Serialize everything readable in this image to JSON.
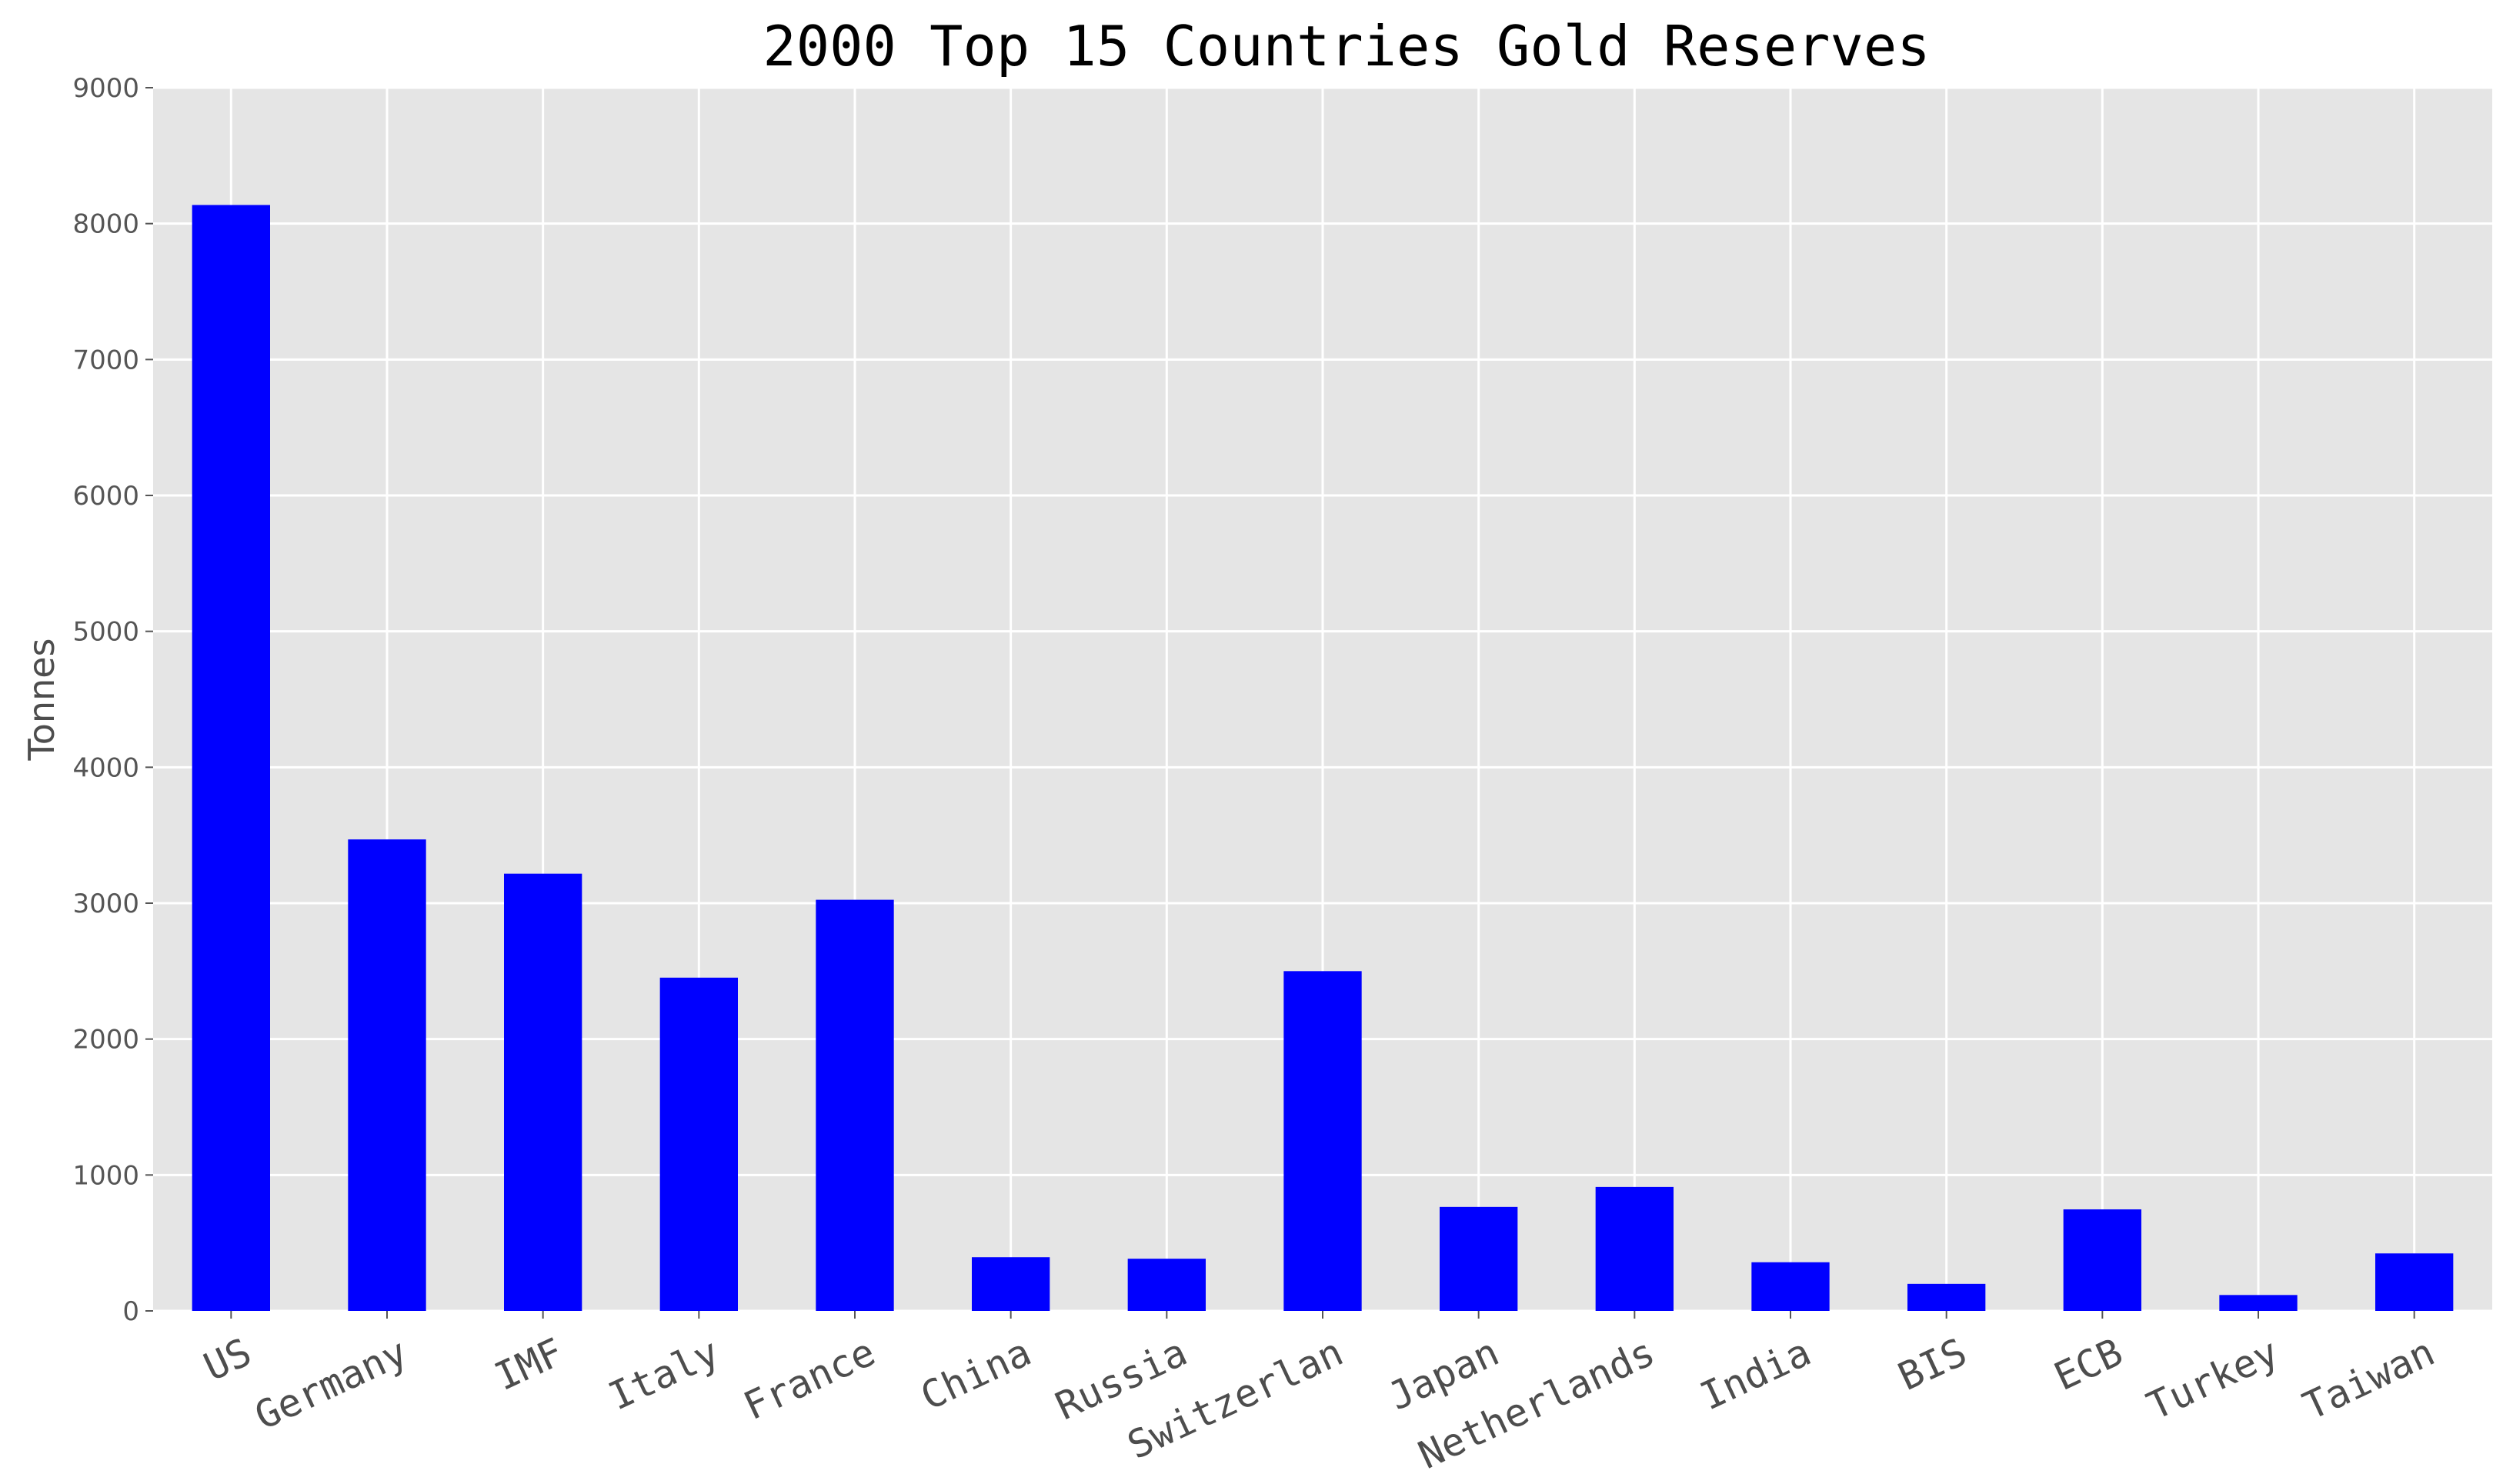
{
  "chart_data": {
    "type": "bar",
    "title": "2000  Top 15 Countries Gold Reserves",
    "xlabel": "",
    "ylabel": "Tonnes",
    "categories": [
      "US",
      "Germany",
      "IMF",
      "Italy",
      "France",
      "China",
      "Russia",
      "Switzerlan",
      "Japan",
      "Netherlands",
      "India",
      "BIS",
      "ECB",
      "Turkey",
      "Taiwan"
    ],
    "values": [
      8137,
      3469,
      3217,
      2452,
      3025,
      395,
      384,
      2500,
      765,
      912,
      358,
      199,
      747,
      117,
      423
    ],
    "ylim": [
      0,
      9000
    ],
    "yticks": [
      "0",
      "1000",
      "2000",
      "3000",
      "4000",
      "5000",
      "6000",
      "7000",
      "8000",
      "9000"
    ],
    "grid": true,
    "legend": "none",
    "colors": {
      "bar": "#0000ff",
      "plot_background": "#e5e5e5",
      "grid": "#ffffff"
    }
  }
}
